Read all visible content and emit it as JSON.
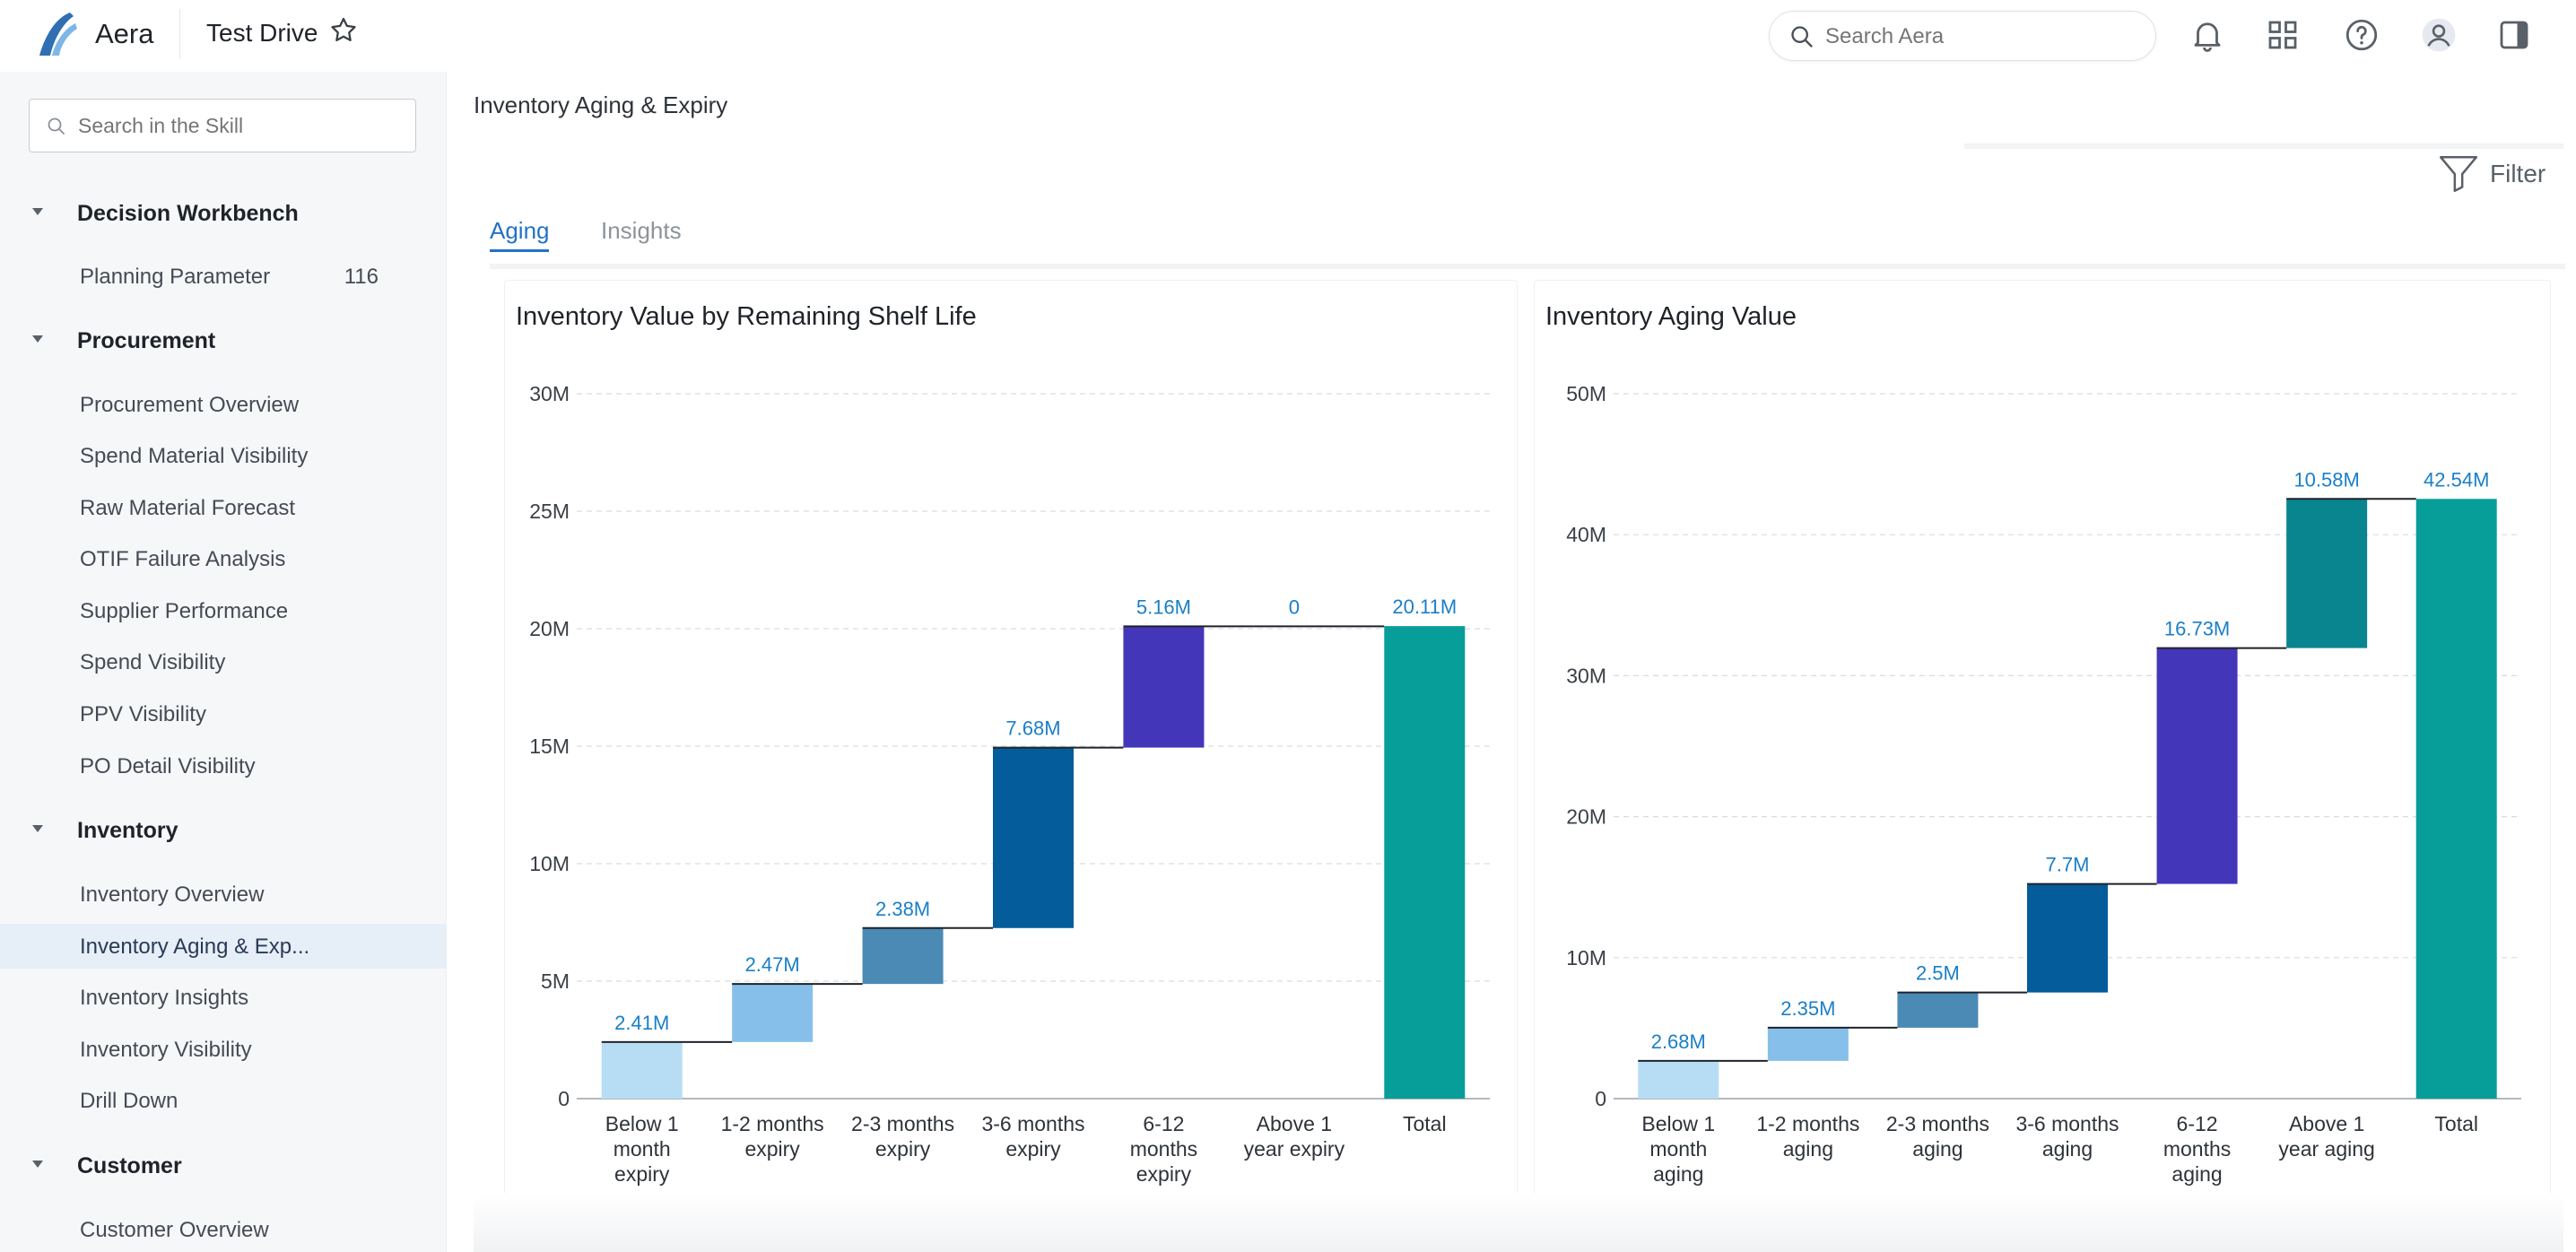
{
  "header": {
    "app_name": "Aera",
    "project_title": "Test Drive",
    "search_placeholder": "Search Aera"
  },
  "sidebar": {
    "search_placeholder": "Search in the Skill",
    "sections": [
      {
        "label": "Decision Workbench",
        "items": [
          {
            "label": "Planning Parameter",
            "count": "116"
          }
        ]
      },
      {
        "label": "Procurement",
        "items": [
          {
            "label": "Procurement Overview"
          },
          {
            "label": "Spend Material Visibility"
          },
          {
            "label": "Raw Material Forecast"
          },
          {
            "label": "OTIF Failure Analysis"
          },
          {
            "label": "Supplier Performance"
          },
          {
            "label": "Spend Visibility"
          },
          {
            "label": "PPV Visibility"
          },
          {
            "label": "PO Detail Visibility"
          }
        ]
      },
      {
        "label": "Inventory",
        "items": [
          {
            "label": "Inventory Overview"
          },
          {
            "label": "Inventory Aging & Exp...",
            "active": true
          },
          {
            "label": "Inventory Insights"
          },
          {
            "label": "Inventory Visibility"
          },
          {
            "label": "Drill Down"
          }
        ]
      },
      {
        "label": "Customer",
        "items": [
          {
            "label": "Customer Overview"
          }
        ]
      }
    ]
  },
  "main": {
    "page_title": "Inventory Aging & Expiry",
    "filter_label": "Filter",
    "tabs": [
      {
        "label": "Aging",
        "active": true
      },
      {
        "label": "Insights",
        "active": false
      }
    ]
  },
  "colors": {
    "step1": "#b7ddf5",
    "step2": "#86c0ea",
    "step3": "#4a8ab5",
    "step4": "#045c9a",
    "step5": "#4436b8",
    "step6": "#08858f",
    "total": "#079e9a",
    "label": "#1a7fc8"
  },
  "chart_data": [
    {
      "type": "waterfall",
      "title": "Inventory Value by Remaining Shelf Life",
      "ylim": [
        0,
        30000000
      ],
      "yticks": [
        "0",
        "5M",
        "10M",
        "15M",
        "20M",
        "25M",
        "30M"
      ],
      "ytick_values": [
        0,
        5000000,
        10000000,
        15000000,
        20000000,
        25000000,
        30000000
      ],
      "categories": [
        "Below 1 month expiry",
        "1-2 months expiry",
        "2-3 months expiry",
        "3-6 months expiry",
        "6-12 months expiry",
        "Above 1 year expiry",
        "Total"
      ],
      "category_lines": [
        [
          "Below 1",
          "month",
          "expiry"
        ],
        [
          "1-2 months",
          "expiry"
        ],
        [
          "2-3 months",
          "expiry"
        ],
        [
          "3-6 months",
          "expiry"
        ],
        [
          "6-12",
          "months",
          "expiry"
        ],
        [
          "Above 1",
          "year expiry"
        ],
        [
          "Total"
        ]
      ],
      "values": [
        2410000,
        2470000,
        2380000,
        7680000,
        5160000,
        0,
        20110000
      ],
      "value_labels": [
        "2.41M",
        "2.47M",
        "2.38M",
        "7.68M",
        "5.16M",
        "0",
        "20.11M"
      ],
      "is_total": [
        false,
        false,
        false,
        false,
        false,
        false,
        true
      ]
    },
    {
      "type": "waterfall",
      "title": "Inventory Aging Value",
      "ylim": [
        0,
        50000000
      ],
      "yticks": [
        "0",
        "10M",
        "20M",
        "30M",
        "40M",
        "50M"
      ],
      "ytick_values": [
        0,
        10000000,
        20000000,
        30000000,
        40000000,
        50000000
      ],
      "categories": [
        "Below 1 month aging",
        "1-2 months aging",
        "2-3 months aging",
        "3-6 months aging",
        "6-12 months aging",
        "Above 1 year aging",
        "Total"
      ],
      "category_lines": [
        [
          "Below 1",
          "month",
          "aging"
        ],
        [
          "1-2 months",
          "aging"
        ],
        [
          "2-3 months",
          "aging"
        ],
        [
          "3-6 months",
          "aging"
        ],
        [
          "6-12",
          "months",
          "aging"
        ],
        [
          "Above 1",
          "year aging"
        ],
        [
          "Total"
        ]
      ],
      "values": [
        2680000,
        2350000,
        2500000,
        7700000,
        16730000,
        10580000,
        42540000
      ],
      "value_labels": [
        "2.68M",
        "2.35M",
        "2.5M",
        "7.7M",
        "16.73M",
        "10.58M",
        "42.54M"
      ],
      "is_total": [
        false,
        false,
        false,
        false,
        false,
        false,
        true
      ]
    }
  ]
}
